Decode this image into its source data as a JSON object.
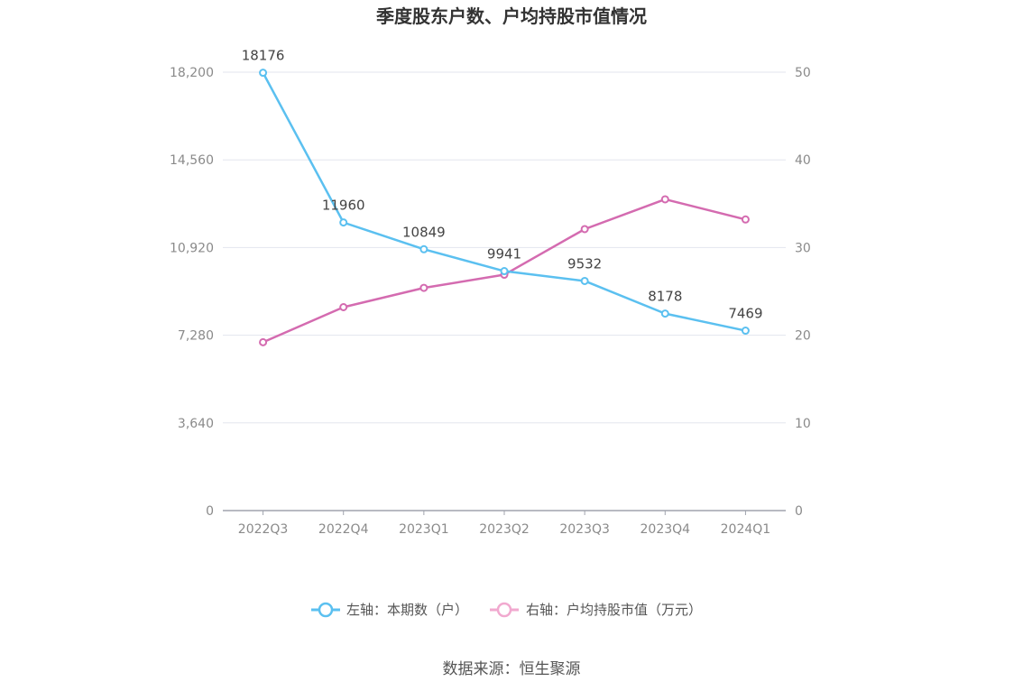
{
  "chart_data": {
    "type": "line",
    "title": "季度股东户数、户均持股市值情况",
    "categories": [
      "2022Q3",
      "2022Q4",
      "2023Q1",
      "2023Q2",
      "2023Q3",
      "2023Q4",
      "2024Q1"
    ],
    "y_left": {
      "ticks": [
        "0",
        "3,640",
        "7,280",
        "10,920",
        "14,560",
        "18,200"
      ],
      "lim": [
        0,
        18200
      ]
    },
    "y_right": {
      "ticks": [
        "0",
        "10",
        "20",
        "30",
        "40",
        "50"
      ],
      "lim": [
        0,
        50
      ]
    },
    "series": [
      {
        "name": "左轴：本期数（户）",
        "axis": "left",
        "color": "#5bc0f0",
        "values": [
          18176,
          11960,
          10849,
          9941,
          9532,
          8178,
          7469
        ],
        "labels": [
          "18176",
          "11960",
          "10849",
          "9941",
          "9532",
          "8178",
          "7469"
        ]
      },
      {
        "name": "右轴：户均持股市值（万元）",
        "axis": "right",
        "color": "#d46bb0",
        "values": [
          19.2,
          23.2,
          25.4,
          26.9,
          32.1,
          35.5,
          33.2
        ]
      }
    ],
    "grid": true,
    "legend_position": "bottom"
  },
  "footer": {
    "source": "数据来源：恒生聚源"
  },
  "colors": {
    "grid": "#e3e6ee",
    "axis": "#a0a3ad",
    "legend_left_marker": "#5bc0f0",
    "legend_right_marker": "#f1a9cf"
  }
}
